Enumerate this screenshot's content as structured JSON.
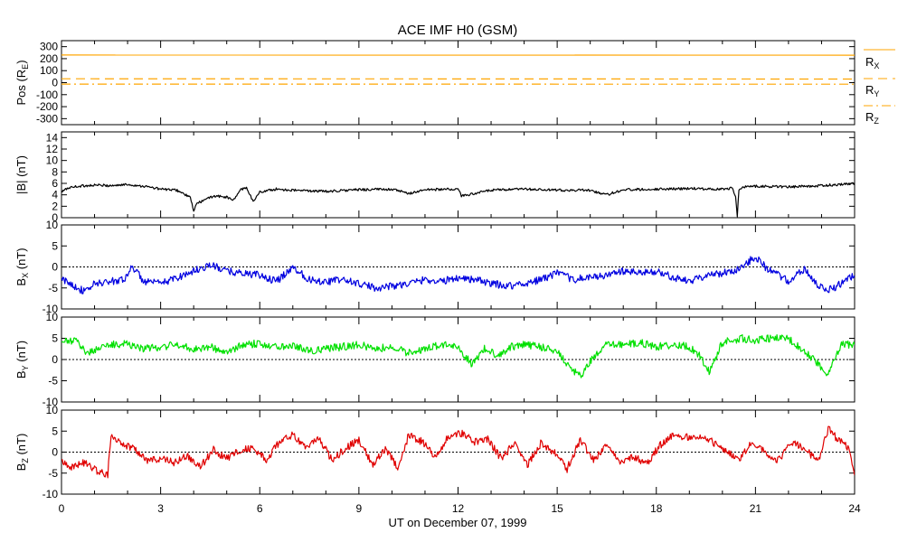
{
  "chart_data": {
    "type": "line",
    "title": "ACE IMF H0 (GSM)",
    "xlabel": "UT on December 07, 1999",
    "x_ticks": [
      "0",
      "3",
      "6",
      "9",
      "12",
      "15",
      "18",
      "21",
      "24"
    ],
    "xlim": [
      0,
      24
    ],
    "colors": {
      "position": "#ffa500",
      "magnitude": "#000000",
      "bx": "#0000e0",
      "by": "#00e000",
      "bz": "#e00000"
    },
    "panels": [
      {
        "id": "pos",
        "ylabel_main": "Pos (R",
        "ylabel_sub": "E",
        "ylabel_close": ")",
        "ylim": [
          -350,
          350
        ],
        "ytick_values": [
          300,
          200,
          100,
          0,
          -100,
          -200,
          -300
        ],
        "ytick_labels": [
          "300",
          "200",
          "100",
          "0",
          "-100",
          "-200",
          "-300"
        ],
        "zero_line": false,
        "series": [
          {
            "name": "R",
            "sub": "X",
            "style": "solid",
            "x": [
              0,
              24
            ],
            "values": [
              230,
              229
            ]
          },
          {
            "name": "R",
            "sub": "Y",
            "style": "dashed",
            "x": [
              0,
              24
            ],
            "values": [
              32,
              30
            ]
          },
          {
            "name": "R",
            "sub": "Z",
            "style": "dashdot",
            "x": [
              0,
              24
            ],
            "values": [
              -12,
              -13
            ]
          }
        ]
      },
      {
        "id": "mag",
        "ylabel_main": "|B| (nT)",
        "ylim": [
          0,
          15
        ],
        "ytick_values": [
          0,
          2,
          4,
          6,
          8,
          10,
          12,
          14
        ],
        "ytick_labels": [
          "0",
          "2",
          "4",
          "6",
          "8",
          "10",
          "12",
          "14"
        ],
        "zero_line": false,
        "series": [
          {
            "name": "|B|",
            "x": [
              0,
              0.2,
              0.5,
              1,
              1.5,
              2,
              2.5,
              3,
              3.5,
              3.9,
              4.0,
              4.1,
              4.3,
              4.6,
              5.0,
              5.2,
              5.4,
              5.6,
              5.8,
              6.0,
              6.5,
              7,
              8,
              9,
              10,
              10.5,
              11,
              12,
              12.1,
              13,
              13.5,
              14,
              15,
              16,
              16.5,
              17,
              18,
              19,
              20,
              20.3,
              20.4,
              20.45,
              20.5,
              20.6,
              21,
              22,
              23,
              24
            ],
            "values": [
              4.5,
              5.2,
              5.5,
              5.7,
              5.6,
              5.8,
              5.5,
              5.0,
              4.8,
              3.5,
              1.2,
              2.5,
              3.0,
              3.8,
              3.6,
              3.0,
              4.8,
              5.3,
              2.8,
              4.5,
              5.0,
              4.8,
              4.6,
              4.9,
              5.0,
              4.2,
              4.9,
              5.0,
              3.8,
              4.8,
              4.9,
              5.0,
              4.8,
              4.8,
              4.0,
              4.9,
              5.0,
              5.1,
              5.0,
              5.2,
              3.5,
              0.3,
              4.8,
              5.4,
              5.5,
              5.4,
              5.6,
              6.0
            ]
          }
        ]
      },
      {
        "id": "bx",
        "ylabel_main": "B",
        "ylabel_sub": "X",
        "ylabel_close": " (nT)",
        "ylim": [
          -10,
          10
        ],
        "ytick_values": [
          10,
          5,
          0,
          -5,
          -10
        ],
        "ytick_labels": [
          "10",
          "5",
          "0",
          "-5",
          "-10"
        ],
        "zero_line": true,
        "series": [
          {
            "name": "Bx",
            "x": [
              0,
              0.3,
              0.7,
              1.0,
              1.5,
              2.0,
              2.1,
              2.5,
              3.0,
              3.5,
              4.0,
              4.5,
              5.0,
              5.5,
              6.0,
              6.5,
              7.0,
              7.5,
              8.0,
              8.5,
              9.0,
              9.5,
              10.0,
              10.5,
              11.0,
              11.5,
              12.0,
              12.5,
              13.0,
              13.5,
              14.0,
              14.5,
              15.0,
              15.5,
              16.0,
              16.5,
              17.0,
              17.5,
              18.0,
              18.5,
              19.0,
              19.5,
              20.0,
              20.5,
              21.0,
              21.3,
              21.7,
              22.0,
              22.5,
              22.9,
              23.2,
              23.6,
              24.0
            ],
            "values": [
              -3.0,
              -4.0,
              -6.0,
              -4.0,
              -3.5,
              -2.5,
              0.5,
              -3.5,
              -4.0,
              -2.5,
              -1.0,
              0.5,
              -1.0,
              -1.5,
              -2.0,
              -3.5,
              0.0,
              -3.0,
              -3.5,
              -3.0,
              -4.0,
              -5.0,
              -4.5,
              -4.0,
              -3.0,
              -3.5,
              -2.5,
              -3.0,
              -4.0,
              -4.5,
              -4.0,
              -3.0,
              -1.5,
              -3.0,
              -2.5,
              -2.0,
              -1.0,
              -1.5,
              -1.0,
              -2.5,
              -3.5,
              -2.0,
              -1.5,
              -0.5,
              2.5,
              0.0,
              -2.0,
              -3.5,
              -0.5,
              -4.5,
              -5.5,
              -4.0,
              -2.0
            ]
          }
        ]
      },
      {
        "id": "by",
        "ylabel_main": "B",
        "ylabel_sub": "Y",
        "ylabel_close": " (nT)",
        "ylim": [
          -10,
          10
        ],
        "ytick_values": [
          10,
          5,
          0,
          -5,
          -10
        ],
        "ytick_labels": [
          "10",
          "5",
          "0",
          "-5",
          "-10"
        ],
        "zero_line": true,
        "series": [
          {
            "name": "By",
            "x": [
              0,
              0.4,
              0.8,
              1.2,
              1.6,
              2.0,
              2.5,
              3.0,
              3.5,
              4.0,
              4.5,
              5.0,
              5.5,
              6.0,
              6.5,
              7.0,
              7.5,
              8.0,
              8.5,
              9.0,
              9.5,
              10.0,
              10.5,
              11.0,
              11.5,
              12.0,
              12.4,
              12.8,
              13.2,
              13.6,
              14.0,
              14.5,
              15.0,
              15.4,
              15.7,
              16.0,
              16.5,
              17.0,
              17.5,
              18.0,
              18.5,
              19.0,
              19.3,
              19.6,
              20.0,
              20.3,
              20.6,
              21.0,
              21.5,
              22.0,
              22.5,
              22.9,
              23.2,
              23.6,
              24.0
            ],
            "values": [
              4.0,
              4.5,
              1.5,
              3.0,
              3.5,
              3.8,
              2.5,
              3.0,
              3.5,
              2.5,
              3.0,
              1.5,
              3.5,
              3.8,
              3.0,
              3.5,
              2.0,
              2.5,
              3.0,
              3.5,
              2.5,
              3.0,
              1.5,
              2.5,
              3.5,
              3.0,
              -1.0,
              2.5,
              1.0,
              3.0,
              3.5,
              3.0,
              2.0,
              -2.0,
              -4.0,
              -0.5,
              3.5,
              3.5,
              4.0,
              3.0,
              3.5,
              3.0,
              1.0,
              -3.0,
              4.0,
              4.5,
              5.0,
              4.5,
              5.0,
              4.8,
              2.0,
              -1.0,
              -3.5,
              3.5,
              3.5
            ]
          }
        ]
      },
      {
        "id": "bz",
        "ylabel_main": "B",
        "ylabel_sub": "Z",
        "ylabel_close": " (nT)",
        "ylim": [
          -10,
          10
        ],
        "ytick_values": [
          10,
          5,
          0,
          -5,
          -10
        ],
        "ytick_labels": [
          "10",
          "5",
          "0",
          "-5",
          "-10"
        ],
        "zero_line": true,
        "series": [
          {
            "name": "Bz",
            "x": [
              0,
              0.3,
              0.7,
              1.1,
              1.4,
              1.5,
              1.8,
              2.2,
              2.6,
              3.0,
              3.4,
              3.8,
              4.2,
              4.6,
              5.0,
              5.4,
              5.8,
              6.2,
              6.6,
              7.0,
              7.4,
              7.8,
              8.2,
              8.6,
              9.0,
              9.4,
              9.8,
              10.2,
              10.5,
              10.9,
              11.3,
              11.7,
              12.1,
              12.5,
              12.9,
              13.3,
              13.7,
              14.1,
              14.5,
              14.9,
              15.3,
              15.7,
              16.1,
              16.5,
              16.9,
              17.3,
              17.7,
              18.1,
              18.5,
              18.9,
              19.3,
              19.7,
              20.1,
              20.5,
              20.9,
              21.3,
              21.7,
              22.1,
              22.5,
              22.9,
              23.2,
              23.5,
              23.8,
              24.0
            ],
            "values": [
              -2.0,
              -3.5,
              -2.5,
              -4.5,
              -5.5,
              4.5,
              2.0,
              1.0,
              -2.0,
              -1.5,
              -2.5,
              -1.0,
              -3.5,
              0.5,
              -1.5,
              0.5,
              1.0,
              -2.0,
              2.5,
              4.0,
              1.5,
              3.0,
              -2.0,
              1.0,
              3.0,
              -3.0,
              1.0,
              -4.0,
              4.0,
              2.5,
              -1.0,
              3.5,
              4.5,
              2.5,
              3.0,
              -1.5,
              2.0,
              -3.0,
              2.0,
              0.0,
              -4.0,
              3.0,
              -2.0,
              2.0,
              -2.5,
              -1.0,
              -3.0,
              1.5,
              4.0,
              3.5,
              4.0,
              2.5,
              0.5,
              -2.0,
              2.5,
              0.0,
              -2.0,
              2.5,
              0.5,
              -2.0,
              5.5,
              3.0,
              1.0,
              -5.5
            ]
          }
        ]
      }
    ]
  }
}
